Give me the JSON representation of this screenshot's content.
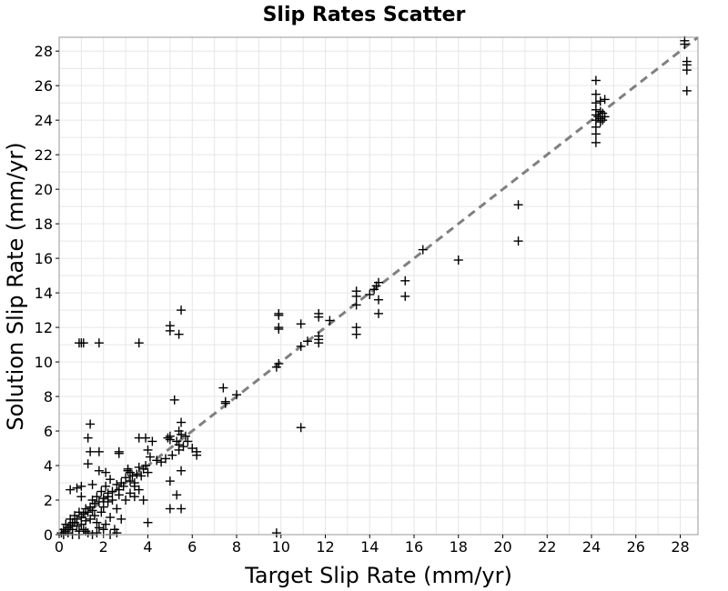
{
  "chart_data": {
    "type": "scatter",
    "title": "Slip Rates Scatter",
    "xlabel": "Target Slip Rate (mm/yr)",
    "ylabel": "Solution Slip Rate (mm/yr)",
    "xlim": [
      0,
      28.8
    ],
    "ylim": [
      0,
      28.8
    ],
    "xticks": [
      0,
      2,
      4,
      6,
      8,
      10,
      12,
      14,
      16,
      18,
      20,
      22,
      24,
      26,
      28
    ],
    "yticks": [
      0,
      2,
      4,
      6,
      8,
      10,
      12,
      14,
      16,
      18,
      20,
      22,
      24,
      26,
      28
    ],
    "grid": true,
    "marker": "plus",
    "reference_line": {
      "style": "dashed",
      "color": "#808080",
      "from": [
        0,
        0
      ],
      "to": [
        28.8,
        28.8
      ]
    },
    "series": [
      {
        "points": [
          [
            0.1,
            0.1
          ],
          [
            0.2,
            0.3
          ],
          [
            0.3,
            0.2
          ],
          [
            0.3,
            0.6
          ],
          [
            0.4,
            0.4
          ],
          [
            0.5,
            0.5
          ],
          [
            0.5,
            0.9
          ],
          [
            0.6,
            0.3
          ],
          [
            0.6,
            0.7
          ],
          [
            0.7,
            0.7
          ],
          [
            0.7,
            1.1
          ],
          [
            0.8,
            0.5
          ],
          [
            0.8,
            0.9
          ],
          [
            0.9,
            1.3
          ],
          [
            0.9,
            0.2
          ],
          [
            1.0,
            1.0
          ],
          [
            1.0,
            0.6
          ],
          [
            1.1,
            1.2
          ],
          [
            1.1,
            0.3
          ],
          [
            1.2,
            1.5
          ],
          [
            1.2,
            0.8
          ],
          [
            1.3,
            1.3
          ],
          [
            1.3,
            0.1
          ],
          [
            1.4,
            1.6
          ],
          [
            1.4,
            0.9
          ],
          [
            1.5,
            1.4
          ],
          [
            1.5,
            2.0
          ],
          [
            1.6,
            1.1
          ],
          [
            1.6,
            1.8
          ],
          [
            1.7,
            2.2
          ],
          [
            1.7,
            0.7
          ],
          [
            1.8,
            1.9
          ],
          [
            1.8,
            0.4
          ],
          [
            1.9,
            2.5
          ],
          [
            1.9,
            1.3
          ],
          [
            2.0,
            2.1
          ],
          [
            2.0,
            1.6
          ],
          [
            2.1,
            2.8
          ],
          [
            2.1,
            0.6
          ],
          [
            2.2,
            2.4
          ],
          [
            2.2,
            1.9
          ],
          [
            2.3,
            3.2
          ],
          [
            2.3,
            1.0
          ],
          [
            2.4,
            2.5
          ],
          [
            2.4,
            2.0
          ],
          [
            2.5,
            0.3
          ],
          [
            2.6,
            2.9
          ],
          [
            2.6,
            1.5
          ],
          [
            2.7,
            2.6
          ],
          [
            2.7,
            2.3
          ],
          [
            2.8,
            3.0
          ],
          [
            2.8,
            0.9
          ],
          [
            2.9,
            2.8
          ],
          [
            3.0,
            3.3
          ],
          [
            3.0,
            2.0
          ],
          [
            3.1,
            3.7
          ],
          [
            3.2,
            3.1
          ],
          [
            3.2,
            2.4
          ],
          [
            3.3,
            3.4
          ],
          [
            3.4,
            2.8
          ],
          [
            3.4,
            3.0
          ],
          [
            3.5,
            3.5
          ],
          [
            3.6,
            3.9
          ],
          [
            3.6,
            2.6
          ],
          [
            3.7,
            3.4
          ],
          [
            3.8,
            3.8
          ],
          [
            3.8,
            2.0
          ],
          [
            3.9,
            4.0
          ],
          [
            4.0,
            3.6
          ],
          [
            4.0,
            0.7
          ],
          [
            0.2,
            0.0
          ],
          [
            0.4,
            0.1
          ],
          [
            0.6,
            0.0
          ],
          [
            0.9,
            0.0
          ],
          [
            1.2,
            0.2
          ],
          [
            1.5,
            0.0
          ],
          [
            1.7,
            0.1
          ],
          [
            2.0,
            0.3
          ],
          [
            2.3,
            0.0
          ],
          [
            2.6,
            0.1
          ],
          [
            0.5,
            2.6
          ],
          [
            0.8,
            2.7
          ],
          [
            1.0,
            2.8
          ],
          [
            1.0,
            2.2
          ],
          [
            1.3,
            4.1
          ],
          [
            1.3,
            5.6
          ],
          [
            1.4,
            6.4
          ],
          [
            1.4,
            4.8
          ],
          [
            1.5,
            2.9
          ],
          [
            1.8,
            4.8
          ],
          [
            1.8,
            3.7
          ],
          [
            2.1,
            3.6
          ],
          [
            2.2,
            2.2
          ],
          [
            2.7,
            4.8
          ],
          [
            2.7,
            4.7
          ],
          [
            3.1,
            3.8
          ],
          [
            3.2,
            3.6
          ],
          [
            3.4,
            2.2
          ],
          [
            0.9,
            11.1
          ],
          [
            1.0,
            11.1
          ],
          [
            1.1,
            11.1
          ],
          [
            1.8,
            11.1
          ],
          [
            3.6,
            11.1
          ],
          [
            3.6,
            5.6
          ],
          [
            3.9,
            5.6
          ],
          [
            4.0,
            4.9
          ],
          [
            4.1,
            4.5
          ],
          [
            4.2,
            5.4
          ],
          [
            4.4,
            4.3
          ],
          [
            4.6,
            4.2
          ],
          [
            4.8,
            4.4
          ],
          [
            4.9,
            5.6
          ],
          [
            5.0,
            5.7
          ],
          [
            5.0,
            5.5
          ],
          [
            5.0,
            3.1
          ],
          [
            5.0,
            1.5
          ],
          [
            5.1,
            4.6
          ],
          [
            5.2,
            7.8
          ],
          [
            5.3,
            5.4
          ],
          [
            5.3,
            2.3
          ],
          [
            5.4,
            6.0
          ],
          [
            5.4,
            5.2
          ],
          [
            5.4,
            4.9
          ],
          [
            5.5,
            6.5
          ],
          [
            5.5,
            5.8
          ],
          [
            5.5,
            3.7
          ],
          [
            5.5,
            1.5
          ],
          [
            5.6,
            5.1
          ],
          [
            5.7,
            5.7
          ],
          [
            5.8,
            5.4
          ],
          [
            6.0,
            5.0
          ],
          [
            6.2,
            4.8
          ],
          [
            6.2,
            4.6
          ],
          [
            5.0,
            12.1
          ],
          [
            5.0,
            11.8
          ],
          [
            5.4,
            11.6
          ],
          [
            5.5,
            13.0
          ],
          [
            7.4,
            8.5
          ],
          [
            7.5,
            7.6
          ],
          [
            7.5,
            7.7
          ],
          [
            8.0,
            8.1
          ],
          [
            9.8,
            0.1
          ],
          [
            9.8,
            9.7
          ],
          [
            9.9,
            9.9
          ],
          [
            9.9,
            12.8
          ],
          [
            9.9,
            12.7
          ],
          [
            9.9,
            12.0
          ],
          [
            9.9,
            11.9
          ],
          [
            10.9,
            6.2
          ],
          [
            10.9,
            10.9
          ],
          [
            10.9,
            12.2
          ],
          [
            11.2,
            11.2
          ],
          [
            11.7,
            12.8
          ],
          [
            11.7,
            12.6
          ],
          [
            11.7,
            11.5
          ],
          [
            11.7,
            11.3
          ],
          [
            11.7,
            11.1
          ],
          [
            12.2,
            12.4
          ],
          [
            13.4,
            14.1
          ],
          [
            13.4,
            13.8
          ],
          [
            13.4,
            13.3
          ],
          [
            13.4,
            12.0
          ],
          [
            13.4,
            11.6
          ],
          [
            14.0,
            13.9
          ],
          [
            14.2,
            14.2
          ],
          [
            14.3,
            14.4
          ],
          [
            14.4,
            14.6
          ],
          [
            14.4,
            13.6
          ],
          [
            14.4,
            12.8
          ],
          [
            15.6,
            14.7
          ],
          [
            15.6,
            13.8
          ],
          [
            16.4,
            16.5
          ],
          [
            18.0,
            15.9
          ],
          [
            20.7,
            19.1
          ],
          [
            20.7,
            17.0
          ],
          [
            24.2,
            26.3
          ],
          [
            24.2,
            25.5
          ],
          [
            24.2,
            25.0
          ],
          [
            24.2,
            24.6
          ],
          [
            24.2,
            24.3
          ],
          [
            24.2,
            24.0
          ],
          [
            24.2,
            23.6
          ],
          [
            24.2,
            23.2
          ],
          [
            24.2,
            22.7
          ],
          [
            24.3,
            24.2
          ],
          [
            24.4,
            25.1
          ],
          [
            24.4,
            24.5
          ],
          [
            24.4,
            24.1
          ],
          [
            24.4,
            23.9
          ],
          [
            24.5,
            24.4
          ],
          [
            24.5,
            24.0
          ],
          [
            24.6,
            24.2
          ],
          [
            24.6,
            25.2
          ],
          [
            28.2,
            28.6
          ],
          [
            28.2,
            28.4
          ],
          [
            28.3,
            27.4
          ],
          [
            28.3,
            27.2
          ],
          [
            28.3,
            26.9
          ],
          [
            28.3,
            25.7
          ]
        ]
      }
    ]
  }
}
